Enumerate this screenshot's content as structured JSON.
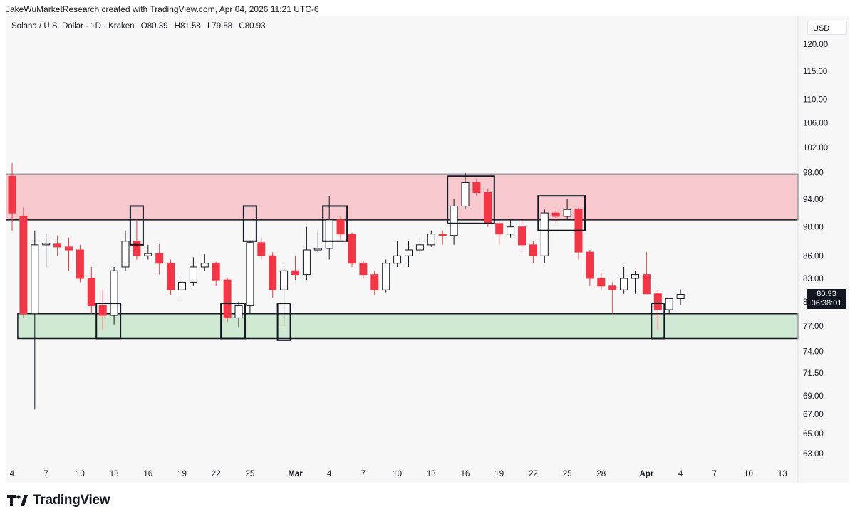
{
  "credit": "JakeWuMarketResearch created with TradingView.com, Apr 04, 2026 11:21 UTC-6",
  "legend": {
    "symbol": "Solana / U.S. Dollar · 1D · Kraken",
    "open": "O80.39",
    "high": "H81.58",
    "low": "L79.58",
    "close": "C80.93"
  },
  "currency": "USD",
  "last_price": {
    "price": "80.93",
    "countdown": "06:38:01"
  },
  "footer": {
    "brand": "TradingView"
  },
  "colors": {
    "up": "#ffffff",
    "down": "#f23645",
    "resistance_fill": "#f8c8cf",
    "support_fill": "#cfe9d2",
    "grid_bg": "#f7f7f7"
  },
  "chart_data": {
    "type": "candlestick",
    "scale": "log",
    "ylim": [
      62,
      124
    ],
    "y_ticks": [
      "120.00",
      "115.00",
      "110.00",
      "106.00",
      "102.00",
      "98.00",
      "94.00",
      "90.00",
      "86.00",
      "83.00",
      "80.00",
      "77.00",
      "74.00",
      "71.50",
      "69.00",
      "67.00",
      "65.00",
      "63.00"
    ],
    "x_ticks": [
      "4",
      "7",
      "10",
      "13",
      "16",
      "19",
      "22",
      "25",
      "Mar",
      "4",
      "7",
      "10",
      "13",
      "16",
      "19",
      "22",
      "25",
      "28",
      "Apr",
      "4",
      "7",
      "10",
      "13"
    ],
    "x_tick_dates": [
      "2026-02-04",
      "2026-02-07",
      "2026-02-10",
      "2026-02-13",
      "2026-02-16",
      "2026-02-19",
      "2026-02-22",
      "2026-02-25",
      "2026-03-01",
      "2026-03-04",
      "2026-03-07",
      "2026-03-10",
      "2026-03-13",
      "2026-03-16",
      "2026-03-19",
      "2026-03-22",
      "2026-03-25",
      "2026-03-28",
      "2026-04-01",
      "2026-04-04",
      "2026-04-07",
      "2026-04-10",
      "2026-04-13"
    ],
    "candles": [
      {
        "d": "2026-02-04",
        "o": 97.5,
        "h": 99.5,
        "l": 89.5,
        "c": 92.0
      },
      {
        "d": "2026-02-05",
        "o": 91.5,
        "h": 92.8,
        "l": 78.0,
        "c": 78.5
      },
      {
        "d": "2026-02-06",
        "o": 78.5,
        "h": 89.5,
        "l": 67.5,
        "c": 87.5
      },
      {
        "d": "2026-02-07",
        "o": 87.5,
        "h": 89.0,
        "l": 84.5,
        "c": 87.7
      },
      {
        "d": "2026-02-08",
        "o": 87.6,
        "h": 88.8,
        "l": 86.0,
        "c": 87.2
      },
      {
        "d": "2026-02-09",
        "o": 87.2,
        "h": 88.5,
        "l": 84.0,
        "c": 86.8
      },
      {
        "d": "2026-02-10",
        "o": 86.8,
        "h": 87.5,
        "l": 82.5,
        "c": 83.0
      },
      {
        "d": "2026-02-11",
        "o": 83.0,
        "h": 84.5,
        "l": 78.5,
        "c": 79.5
      },
      {
        "d": "2026-02-12",
        "o": 79.5,
        "h": 81.5,
        "l": 76.5,
        "c": 78.3
      },
      {
        "d": "2026-02-13",
        "o": 78.3,
        "h": 84.5,
        "l": 77.2,
        "c": 84.0
      },
      {
        "d": "2026-02-14",
        "o": 84.5,
        "h": 89.5,
        "l": 84.0,
        "c": 88.0
      },
      {
        "d": "2026-02-15",
        "o": 88.0,
        "h": 91.0,
        "l": 85.5,
        "c": 86.0
      },
      {
        "d": "2026-02-16",
        "o": 86.0,
        "h": 87.5,
        "l": 85.5,
        "c": 86.3
      },
      {
        "d": "2026-02-17",
        "o": 86.3,
        "h": 87.6,
        "l": 83.5,
        "c": 85.0
      },
      {
        "d": "2026-02-18",
        "o": 85.0,
        "h": 85.5,
        "l": 80.8,
        "c": 81.5
      },
      {
        "d": "2026-02-19",
        "o": 81.5,
        "h": 83.5,
        "l": 80.5,
        "c": 82.5
      },
      {
        "d": "2026-02-20",
        "o": 82.5,
        "h": 85.8,
        "l": 82.0,
        "c": 84.5
      },
      {
        "d": "2026-02-21",
        "o": 84.5,
        "h": 86.2,
        "l": 84.0,
        "c": 85.0
      },
      {
        "d": "2026-02-22",
        "o": 85.0,
        "h": 85.2,
        "l": 82.0,
        "c": 82.8
      },
      {
        "d": "2026-02-23",
        "o": 82.8,
        "h": 83.0,
        "l": 77.5,
        "c": 78.0
      },
      {
        "d": "2026-02-24",
        "o": 78.0,
        "h": 80.0,
        "l": 76.8,
        "c": 79.5
      },
      {
        "d": "2026-02-25",
        "o": 79.5,
        "h": 88.0,
        "l": 78.5,
        "c": 87.8
      },
      {
        "d": "2026-02-26",
        "o": 87.8,
        "h": 88.5,
        "l": 85.5,
        "c": 86.0
      },
      {
        "d": "2026-02-27",
        "o": 86.0,
        "h": 86.5,
        "l": 80.5,
        "c": 81.5
      },
      {
        "d": "2026-02-28",
        "o": 81.5,
        "h": 84.5,
        "l": 77.0,
        "c": 84.0
      },
      {
        "d": "2026-03-01",
        "o": 84.0,
        "h": 86.0,
        "l": 82.8,
        "c": 83.5
      },
      {
        "d": "2026-03-02",
        "o": 83.5,
        "h": 90.0,
        "l": 82.8,
        "c": 86.8
      },
      {
        "d": "2026-03-03",
        "o": 86.8,
        "h": 89.5,
        "l": 86.5,
        "c": 87.0
      },
      {
        "d": "2026-03-04",
        "o": 87.0,
        "h": 94.5,
        "l": 85.5,
        "c": 91.0
      },
      {
        "d": "2026-03-05",
        "o": 91.0,
        "h": 91.5,
        "l": 88.0,
        "c": 89.0
      },
      {
        "d": "2026-03-06",
        "o": 89.0,
        "h": 89.2,
        "l": 84.5,
        "c": 85.0
      },
      {
        "d": "2026-03-07",
        "o": 85.0,
        "h": 85.3,
        "l": 83.0,
        "c": 83.5
      },
      {
        "d": "2026-03-08",
        "o": 83.5,
        "h": 84.0,
        "l": 80.8,
        "c": 81.5
      },
      {
        "d": "2026-03-09",
        "o": 81.5,
        "h": 85.5,
        "l": 81.2,
        "c": 85.0
      },
      {
        "d": "2026-03-10",
        "o": 85.0,
        "h": 88.0,
        "l": 84.5,
        "c": 86.0
      },
      {
        "d": "2026-03-11",
        "o": 86.0,
        "h": 88.0,
        "l": 84.5,
        "c": 86.8
      },
      {
        "d": "2026-03-12",
        "o": 86.8,
        "h": 88.5,
        "l": 86.0,
        "c": 87.5
      },
      {
        "d": "2026-03-13",
        "o": 87.5,
        "h": 89.5,
        "l": 87.2,
        "c": 89.0
      },
      {
        "d": "2026-03-14",
        "o": 89.0,
        "h": 89.5,
        "l": 87.5,
        "c": 88.8
      },
      {
        "d": "2026-03-15",
        "o": 88.8,
        "h": 94.0,
        "l": 87.5,
        "c": 93.0
      },
      {
        "d": "2026-03-16",
        "o": 93.0,
        "h": 98.0,
        "l": 92.5,
        "c": 96.5
      },
      {
        "d": "2026-03-17",
        "o": 96.5,
        "h": 97.0,
        "l": 94.5,
        "c": 95.0
      },
      {
        "d": "2026-03-18",
        "o": 95.0,
        "h": 95.5,
        "l": 90.0,
        "c": 90.5
      },
      {
        "d": "2026-03-19",
        "o": 90.5,
        "h": 90.8,
        "l": 87.5,
        "c": 89.0
      },
      {
        "d": "2026-03-20",
        "o": 89.0,
        "h": 91.0,
        "l": 88.5,
        "c": 90.0
      },
      {
        "d": "2026-03-21",
        "o": 90.0,
        "h": 91.0,
        "l": 86.5,
        "c": 87.5
      },
      {
        "d": "2026-03-22",
        "o": 87.5,
        "h": 88.0,
        "l": 85.0,
        "c": 86.0
      },
      {
        "d": "2026-03-23",
        "o": 86.0,
        "h": 92.5,
        "l": 85.0,
        "c": 92.0
      },
      {
        "d": "2026-03-24",
        "o": 92.0,
        "h": 92.5,
        "l": 90.5,
        "c": 91.5
      },
      {
        "d": "2026-03-25",
        "o": 91.5,
        "h": 94.0,
        "l": 91.0,
        "c": 92.5
      },
      {
        "d": "2026-03-26",
        "o": 92.5,
        "h": 92.8,
        "l": 85.5,
        "c": 86.5
      },
      {
        "d": "2026-03-27",
        "o": 86.5,
        "h": 86.8,
        "l": 82.0,
        "c": 83.0
      },
      {
        "d": "2026-03-28",
        "o": 83.0,
        "h": 83.8,
        "l": 81.5,
        "c": 82.0
      },
      {
        "d": "2026-03-29",
        "o": 82.0,
        "h": 82.5,
        "l": 78.5,
        "c": 81.5
      },
      {
        "d": "2026-03-30",
        "o": 81.5,
        "h": 84.5,
        "l": 81.0,
        "c": 83.0
      },
      {
        "d": "2026-03-31",
        "o": 83.0,
        "h": 84.0,
        "l": 81.0,
        "c": 83.5
      },
      {
        "d": "2026-04-01",
        "o": 83.5,
        "h": 86.5,
        "l": 81.0,
        "c": 81.0
      },
      {
        "d": "2026-04-02",
        "o": 81.0,
        "h": 81.5,
        "l": 76.5,
        "c": 79.0
      },
      {
        "d": "2026-04-03",
        "o": 79.0,
        "h": 80.5,
        "l": 78.5,
        "c": 80.4
      },
      {
        "d": "2026-04-04",
        "o": 80.39,
        "h": 81.58,
        "l": 79.58,
        "c": 80.93
      }
    ],
    "zones": [
      {
        "name": "resistance",
        "from": "2026-02-04",
        "to": "2026-04-14",
        "low": 91.0,
        "high": 97.8
      },
      {
        "name": "support",
        "from": "2026-02-05",
        "to": "2026-04-14",
        "low": 75.5,
        "high": 78.5
      }
    ],
    "annotation_boxes": [
      {
        "from": "2026-02-12",
        "to": "2026-02-13",
        "low": 75.5,
        "high": 79.8
      },
      {
        "from": "2026-02-15",
        "to": "2026-02-15",
        "low": 87.5,
        "high": 93.0
      },
      {
        "from": "2026-02-23",
        "to": "2026-02-24",
        "low": 75.5,
        "high": 79.8
      },
      {
        "from": "2026-02-25",
        "to": "2026-02-25",
        "low": 88.0,
        "high": 93.0
      },
      {
        "from": "2026-02-28",
        "to": "2026-02-28",
        "low": 75.3,
        "high": 79.8
      },
      {
        "from": "2026-03-04",
        "to": "2026-03-05",
        "low": 88.0,
        "high": 93.0
      },
      {
        "from": "2026-03-15",
        "to": "2026-03-18",
        "low": 90.5,
        "high": 97.5
      },
      {
        "from": "2026-03-23",
        "to": "2026-03-26",
        "low": 89.5,
        "high": 94.5
      },
      {
        "from": "2026-04-02",
        "to": "2026-04-02",
        "low": 75.5,
        "high": 79.8
      }
    ]
  }
}
